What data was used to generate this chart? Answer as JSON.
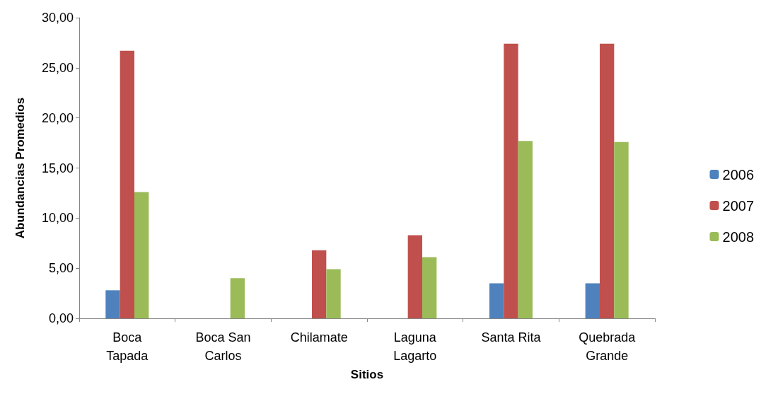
{
  "chart_data": {
    "type": "bar",
    "xlabel": "Sitios",
    "ylabel": "Abundancias Promedios",
    "categories": [
      "Boca\nTapada",
      "Boca San\nCarlos",
      "Chilamate",
      "Laguna\nLagarto",
      "Santa Rita",
      "Quebrada\nGrande"
    ],
    "series": [
      {
        "name": "2006",
        "color": "#4f81bd",
        "values": [
          2.8,
          0,
          0,
          0,
          3.5,
          3.5
        ]
      },
      {
        "name": "2007",
        "color": "#c0504d",
        "values": [
          26.7,
          0,
          6.8,
          8.3,
          27.4,
          27.4
        ]
      },
      {
        "name": "2008",
        "color": "#9bbb59",
        "values": [
          12.6,
          4.0,
          4.9,
          6.1,
          17.7,
          17.6
        ]
      }
    ],
    "ylim": [
      0,
      30
    ],
    "yticks": [
      {
        "value": 0,
        "label": "0,00"
      },
      {
        "value": 5,
        "label": "5,00"
      },
      {
        "value": 10,
        "label": "10,00"
      },
      {
        "value": 15,
        "label": "15,00"
      },
      {
        "value": 20,
        "label": "20,00"
      },
      {
        "value": 25,
        "label": "25,00"
      },
      {
        "value": 30,
        "label": "30,00"
      }
    ],
    "grid": false,
    "legend": "right"
  }
}
